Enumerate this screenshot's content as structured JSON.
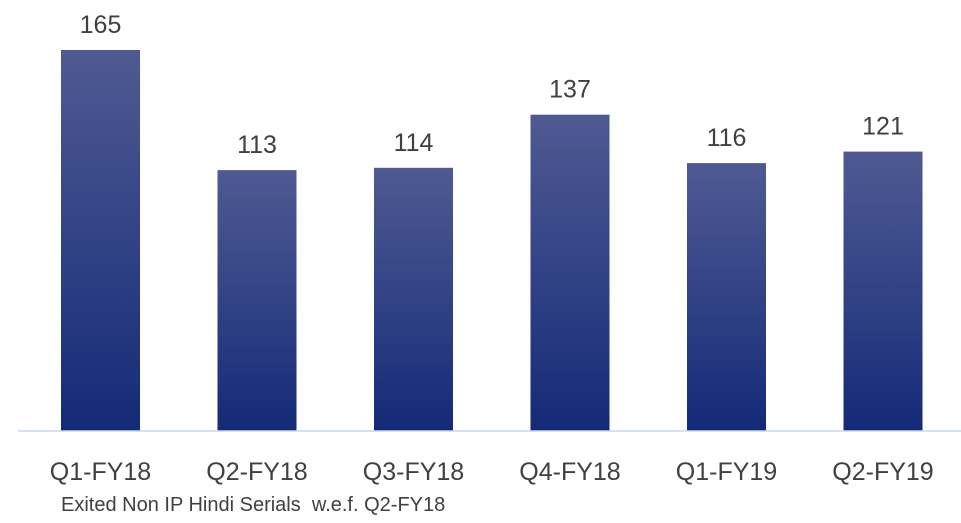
{
  "chart_data": {
    "type": "bar",
    "categories": [
      "Q1-FY18",
      "Q2-FY18",
      "Q3-FY18",
      "Q4-FY18",
      "Q1-FY19",
      "Q2-FY19"
    ],
    "values": [
      165,
      113,
      114,
      137,
      116,
      121
    ],
    "data_labels": [
      "165",
      "113",
      "114",
      "137",
      "116",
      "121"
    ],
    "title": "",
    "xlabel": "",
    "ylabel": "",
    "ylim": [
      0,
      165
    ],
    "grid": false,
    "legend": "none",
    "colors": {
      "bar_top": "#4f5a92",
      "bar_bottom": "#142a78",
      "axis": "#c9d7ef",
      "text": "#404040"
    }
  },
  "footnote": "Exited Non IP Hindi Serials  w.e.f. Q2-FY18"
}
